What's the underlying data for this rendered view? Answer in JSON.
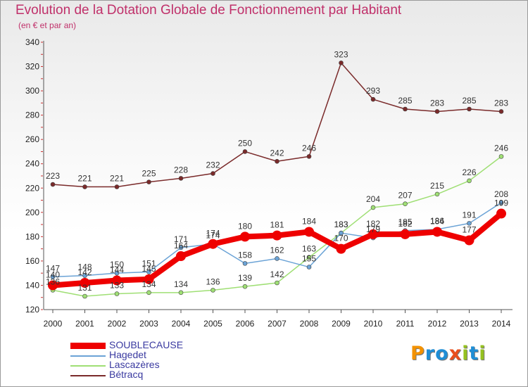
{
  "header": {
    "title": "Evolution de la Dotation Globale de Fonctionnement par Habitant",
    "subtitle": "(en € et par an)"
  },
  "logo": {
    "letters": [
      "P",
      "r",
      "o",
      "x",
      "i",
      "t",
      "i"
    ],
    "colors": [
      "#f39200",
      "#1f8ed6",
      "#1f8ed6",
      "#e94e1b",
      "#95c11f",
      "#1f8ed6",
      "#95c11f"
    ]
  },
  "chart_data": {
    "type": "line",
    "title": "Evolution de la Dotation Globale de Fonctionnement par Habitant",
    "subtitle": "(en € et par an)",
    "categories": [
      "2000",
      "2001",
      "2002",
      "2003",
      "2004",
      "2005",
      "2006",
      "2007",
      "2008",
      "2009",
      "2010",
      "2011",
      "2012",
      "2013",
      "2014"
    ],
    "ylim": [
      120,
      340
    ],
    "yticks": [
      120,
      140,
      160,
      180,
      200,
      220,
      240,
      260,
      280,
      300,
      320,
      340
    ],
    "grid": false,
    "legend_position": "bottom-left",
    "series": [
      {
        "name": "SOUBLECAUSE",
        "color": "#ee0000",
        "width": 8,
        "marker": 7,
        "values": [
          140,
          142,
          144,
          145,
          164,
          174,
          180,
          181,
          184,
          170,
          182,
          182,
          184,
          177,
          199
        ],
        "labels": [
          "140",
          "142",
          "144",
          "145",
          "164",
          "174",
          "180",
          "181",
          "184",
          "170",
          "182",
          "182",
          "184",
          "177",
          "199"
        ]
      },
      {
        "name": "Hagedet",
        "color": "#6ba3d6",
        "width": 1.5,
        "marker": 3,
        "values": [
          147,
          148,
          150,
          151,
          171,
          174,
          158,
          162,
          155,
          183,
          179,
          185,
          186,
          191,
          208
        ],
        "labels": [
          "147",
          "148",
          "150",
          "151",
          "171",
          "174",
          "158",
          "162",
          "155",
          "183",
          "179",
          "185",
          "186",
          "191",
          "208"
        ]
      },
      {
        "name": "Lascazères",
        "color": "#9fdf74",
        "width": 1.5,
        "marker": 3,
        "values": [
          136,
          131,
          133,
          134,
          134,
          136,
          139,
          142,
          163,
          183,
          204,
          207,
          215,
          226,
          246
        ],
        "labels": [
          "136",
          "131",
          "133",
          "134",
          "134",
          "136",
          "139",
          "142",
          "163",
          "183",
          "204",
          "207",
          "215",
          "226",
          "246"
        ]
      },
      {
        "name": "Bétracq",
        "color": "#7a2a2a",
        "width": 1.5,
        "marker": 3,
        "values": [
          223,
          221,
          221,
          225,
          228,
          232,
          250,
          242,
          246,
          323,
          293,
          285,
          283,
          285,
          283
        ],
        "labels": [
          "223",
          "221",
          "221",
          "225",
          "228",
          "232",
          "250",
          "242",
          "246",
          "323",
          "293",
          "285",
          "283",
          "285",
          "283"
        ]
      }
    ]
  }
}
